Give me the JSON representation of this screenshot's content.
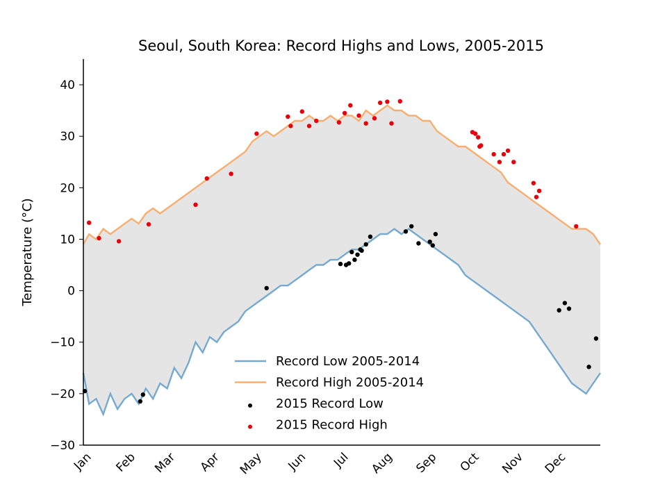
{
  "chart_data": {
    "type": "line",
    "title": "Seoul, South Korea: Record Highs and Lows, 2005-2015",
    "xlabel": "",
    "ylabel": "Temperature (°C)",
    "ylim": [
      -30,
      45
    ],
    "yticks": [
      -30,
      -20,
      -10,
      0,
      10,
      20,
      30,
      40
    ],
    "ytick_labels": [
      "−30",
      "−20",
      "−10",
      "0",
      "10",
      "20",
      "30",
      "40"
    ],
    "xlim": [
      1,
      365
    ],
    "month_ticks": [
      {
        "label": "Jan",
        "day": 1
      },
      {
        "label": "Feb",
        "day": 32
      },
      {
        "label": "Mar",
        "day": 60
      },
      {
        "label": "Apr",
        "day": 91
      },
      {
        "label": "May",
        "day": 121
      },
      {
        "label": "Jun",
        "day": 152
      },
      {
        "label": "Jul",
        "day": 182
      },
      {
        "label": "Aug",
        "day": 213
      },
      {
        "label": "Sep",
        "day": 244
      },
      {
        "label": "Oct",
        "day": 274
      },
      {
        "label": "Nov",
        "day": 305
      },
      {
        "label": "Dec",
        "day": 335
      }
    ],
    "grid": false,
    "legend_position": "lower-center",
    "fill_between": {
      "color": "#e5e5e5",
      "between": [
        "Record Low 2005-2014",
        "Record High 2005-2014"
      ]
    },
    "series": [
      {
        "name": "Record Low 2005-2014",
        "kind": "line",
        "color": "#76a9cf",
        "x": [
          1,
          5,
          10,
          15,
          20,
          25,
          30,
          35,
          40,
          45,
          50,
          55,
          60,
          65,
          70,
          75,
          80,
          85,
          90,
          95,
          100,
          105,
          110,
          115,
          120,
          125,
          130,
          135,
          140,
          145,
          150,
          155,
          160,
          165,
          170,
          175,
          180,
          185,
          190,
          195,
          200,
          205,
          210,
          215,
          220,
          225,
          230,
          235,
          240,
          245,
          250,
          255,
          260,
          265,
          270,
          275,
          280,
          285,
          290,
          295,
          300,
          305,
          310,
          315,
          320,
          325,
          330,
          335,
          340,
          345,
          350,
          355,
          360,
          365
        ],
        "y": [
          -16,
          -22,
          -21,
          -24,
          -20,
          -23,
          -21,
          -20,
          -22,
          -19,
          -21,
          -18,
          -19,
          -15,
          -17,
          -14,
          -10,
          -12,
          -9,
          -10,
          -8,
          -7,
          -6,
          -4,
          -3,
          -2,
          -1,
          0,
          1,
          1,
          2,
          3,
          4,
          5,
          5,
          6,
          6,
          7,
          8,
          8,
          9,
          10,
          11,
          11,
          12,
          11,
          12,
          11,
          10,
          9,
          8,
          7,
          6,
          5,
          3,
          2,
          1,
          0,
          -1,
          -2,
          -3,
          -4,
          -5,
          -6,
          -8,
          -10,
          -12,
          -14,
          -16,
          -18,
          -19,
          -20,
          -18,
          -16
        ]
      },
      {
        "name": "Record High 2005-2014",
        "kind": "line",
        "color": "#f7ae6f",
        "x": [
          1,
          5,
          10,
          15,
          20,
          25,
          30,
          35,
          40,
          45,
          50,
          55,
          60,
          65,
          70,
          75,
          80,
          85,
          90,
          95,
          100,
          105,
          110,
          115,
          120,
          125,
          130,
          135,
          140,
          145,
          150,
          155,
          160,
          165,
          170,
          175,
          180,
          185,
          190,
          195,
          200,
          205,
          210,
          215,
          220,
          225,
          230,
          235,
          240,
          245,
          250,
          255,
          260,
          265,
          270,
          275,
          280,
          285,
          290,
          295,
          300,
          305,
          310,
          315,
          320,
          325,
          330,
          335,
          340,
          345,
          350,
          355,
          360,
          365
        ],
        "y": [
          9,
          11,
          10,
          12,
          11,
          12,
          13,
          14,
          13,
          15,
          16,
          15,
          16,
          17,
          18,
          19,
          20,
          21,
          22,
          23,
          24,
          25,
          26,
          27,
          29,
          30,
          31,
          30,
          31,
          32,
          33,
          33,
          34,
          33,
          33,
          34,
          33,
          34,
          34,
          33,
          35,
          34,
          35,
          36,
          35,
          35,
          34,
          34,
          33,
          33,
          31,
          30,
          29,
          28,
          28,
          27,
          26,
          25,
          24,
          23,
          21,
          20,
          19,
          18,
          17,
          16,
          15,
          14,
          13,
          12,
          12,
          12,
          11,
          9
        ]
      },
      {
        "name": "2015 Record Low",
        "kind": "scatter",
        "color": "#000000",
        "x": [
          2,
          41,
          43,
          130,
          182,
          186,
          188,
          190,
          192,
          194,
          196,
          197,
          200,
          203,
          228,
          232,
          237,
          245,
          247,
          249,
          336,
          340,
          343,
          357,
          362
        ],
        "y": [
          -19.5,
          -21.5,
          -20.2,
          0.5,
          5.2,
          5.0,
          5.3,
          7.5,
          6.0,
          7.0,
          8.0,
          7.8,
          9.0,
          10.5,
          11.5,
          12.5,
          9.2,
          9.5,
          8.8,
          11.0,
          -3.8,
          -2.4,
          -3.5,
          -14.8,
          -9.3
        ]
      },
      {
        "name": "2015 Record High",
        "kind": "scatter",
        "color": "#e8000b",
        "x": [
          5,
          12,
          26,
          47,
          80,
          88,
          105,
          123,
          145,
          147,
          155,
          160,
          165,
          181,
          185,
          189,
          195,
          200,
          206,
          210,
          215,
          218,
          224,
          275,
          277,
          279,
          280,
          281,
          290,
          294,
          297,
          300,
          304,
          318,
          320,
          322,
          348
        ],
        "y": [
          13.2,
          10.2,
          9.6,
          12.9,
          16.7,
          21.8,
          22.7,
          30.5,
          33.8,
          32.0,
          34.8,
          32.0,
          33.0,
          32.7,
          34.5,
          36.0,
          34.0,
          32.5,
          33.5,
          36.5,
          36.7,
          32.5,
          36.8,
          30.8,
          30.5,
          29.8,
          28.0,
          28.2,
          26.5,
          25.0,
          26.5,
          27.2,
          25.0,
          20.9,
          18.2,
          19.4,
          12.5
        ]
      }
    ],
    "legend": [
      {
        "label": "Record Low 2005-2014",
        "kind": "line",
        "color": "#76a9cf"
      },
      {
        "label": "Record High 2005-2014",
        "kind": "line",
        "color": "#f7ae6f"
      },
      {
        "label": "2015 Record Low",
        "kind": "marker",
        "color": "#000000"
      },
      {
        "label": "2015 Record High",
        "kind": "marker",
        "color": "#e8000b"
      }
    ]
  }
}
